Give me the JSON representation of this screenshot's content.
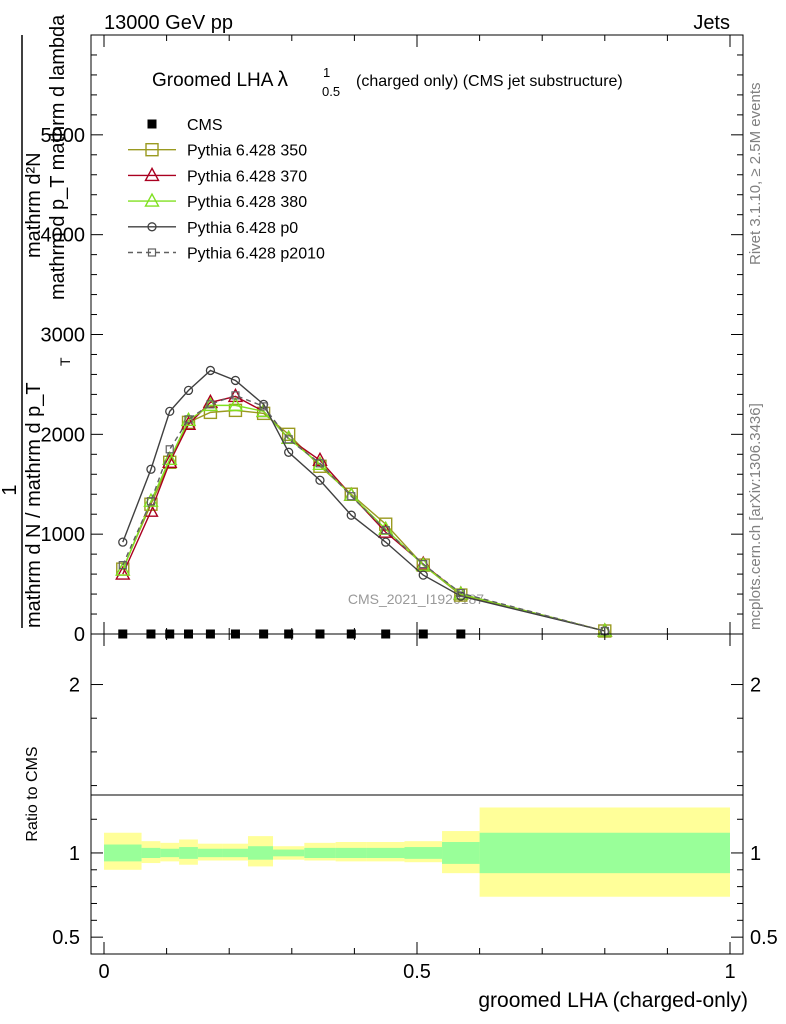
{
  "header": {
    "left": "13000 GeV pp",
    "right": "Jets"
  },
  "side": {
    "rivet": "Rivet 3.1.10, ≥ 2.5M events",
    "mcplots": "mcplots.cern.ch [arXiv:1306.3436]"
  },
  "watermark": "CMS_2021_I1920187",
  "chart_data": {
    "type": "line",
    "title_main": "Groomed LHA",
    "title_lambda": "λ",
    "title_sup": "1",
    "title_sub": "0.5",
    "title_rest": "(charged only) (CMS jet substructure)",
    "xlabel": "groomed LHA (charged-only)",
    "ylabel_numer": "mathrm d²N",
    "ylabel_denom": "mathrm d p_T mathrm d lambda",
    "ylabel_one": "1",
    "ylabel_frac": "mathrm d N / mathrm d p_T",
    "ylabel_sub_T": "T",
    "ratio_ylabel": "Ratio to CMS",
    "xlim": [
      0,
      1
    ],
    "ylim": [
      0,
      6000
    ],
    "ratio_ylim": [
      0.4,
      2.3
    ],
    "x_ticks": [
      "0",
      "0.5",
      "1"
    ],
    "y_ticks": [
      "0",
      "1000",
      "2000",
      "3000",
      "4000",
      "5000"
    ],
    "ratio_ticks": [
      "0.5",
      "1",
      "2"
    ],
    "x": [
      0.03,
      0.075,
      0.105,
      0.135,
      0.17,
      0.21,
      0.255,
      0.295,
      0.345,
      0.395,
      0.45,
      0.51,
      0.57,
      0.8
    ],
    "series": [
      {
        "name": "CMS",
        "color": "#000000",
        "marker": "filled-square",
        "dash": "none",
        "values": [
          0,
          0,
          0,
          0,
          0,
          0,
          0,
          0,
          0,
          0,
          0,
          0,
          0,
          0
        ]
      },
      {
        "name": "Pythia 6.428 350",
        "color": "#9a9a20",
        "marker": "open-square",
        "dash": "none",
        "values": [
          650,
          1300,
          1720,
          2120,
          2220,
          2240,
          2210,
          2000,
          1680,
          1400,
          1100,
          690,
          390,
          30
        ]
      },
      {
        "name": "Pythia 6.428 370",
        "color": "#aa0020",
        "marker": "open-triangle",
        "dash": "none",
        "values": [
          600,
          1230,
          1720,
          2100,
          2320,
          2380,
          2230,
          1960,
          1740,
          1390,
          1020,
          700,
          400,
          30
        ]
      },
      {
        "name": "Pythia 6.428 380",
        "color": "#80e020",
        "marker": "open-triangle",
        "dash": "none",
        "values": [
          640,
          1330,
          1750,
          2140,
          2290,
          2290,
          2230,
          1960,
          1700,
          1390,
          1050,
          690,
          400,
          30
        ]
      },
      {
        "name": "Pythia 6.428 p0",
        "color": "#404040",
        "marker": "open-circle",
        "dash": "none",
        "values": [
          920,
          1650,
          2230,
          2440,
          2640,
          2540,
          2300,
          1820,
          1540,
          1190,
          920,
          590,
          380,
          30
        ]
      },
      {
        "name": "Pythia 6.428 p2010",
        "color": "#606060",
        "marker": "open-small-square",
        "dash": "dashed",
        "values": [
          690,
          1330,
          1850,
          2150,
          2300,
          2390,
          2280,
          1950,
          1710,
          1380,
          1040,
          700,
          410,
          30
        ]
      }
    ],
    "cms_x": [
      0.03,
      0.075,
      0.105,
      0.135,
      0.17,
      0.21,
      0.255,
      0.295,
      0.345,
      0.395,
      0.45,
      0.51,
      0.57
    ],
    "ratio_bands": [
      {
        "x0": 0.0,
        "x1": 0.06,
        "inner": [
          0.95,
          1.05
        ],
        "outer": [
          0.9,
          1.12
        ]
      },
      {
        "x0": 0.06,
        "x1": 0.09,
        "inner": [
          0.97,
          1.03
        ],
        "outer": [
          0.94,
          1.07
        ]
      },
      {
        "x0": 0.09,
        "x1": 0.12,
        "inner": [
          0.975,
          1.025
        ],
        "outer": [
          0.95,
          1.06
        ]
      },
      {
        "x0": 0.12,
        "x1": 0.15,
        "inner": [
          0.965,
          1.035
        ],
        "outer": [
          0.93,
          1.08
        ]
      },
      {
        "x0": 0.15,
        "x1": 0.19,
        "inner": [
          0.975,
          1.025
        ],
        "outer": [
          0.955,
          1.055
        ]
      },
      {
        "x0": 0.19,
        "x1": 0.23,
        "inner": [
          0.975,
          1.025
        ],
        "outer": [
          0.955,
          1.055
        ]
      },
      {
        "x0": 0.23,
        "x1": 0.27,
        "inner": [
          0.96,
          1.04
        ],
        "outer": [
          0.92,
          1.1
        ]
      },
      {
        "x0": 0.27,
        "x1": 0.32,
        "inner": [
          0.98,
          1.02
        ],
        "outer": [
          0.96,
          1.04
        ]
      },
      {
        "x0": 0.32,
        "x1": 0.37,
        "inner": [
          0.97,
          1.03
        ],
        "outer": [
          0.955,
          1.06
        ]
      },
      {
        "x0": 0.37,
        "x1": 0.42,
        "inner": [
          0.97,
          1.03
        ],
        "outer": [
          0.95,
          1.065
        ]
      },
      {
        "x0": 0.42,
        "x1": 0.48,
        "inner": [
          0.97,
          1.03
        ],
        "outer": [
          0.95,
          1.065
        ]
      },
      {
        "x0": 0.48,
        "x1": 0.54,
        "inner": [
          0.965,
          1.035
        ],
        "outer": [
          0.945,
          1.07
        ]
      },
      {
        "x0": 0.54,
        "x1": 0.6,
        "inner": [
          0.935,
          1.065
        ],
        "outer": [
          0.88,
          1.13
        ]
      },
      {
        "x0": 0.6,
        "x1": 1.0,
        "inner": [
          0.88,
          1.12
        ],
        "outer": [
          0.74,
          1.27
        ]
      }
    ],
    "legend_position": "top-left"
  },
  "colors": {
    "band_inner": "#99ff99",
    "band_outer": "#ffff99"
  }
}
